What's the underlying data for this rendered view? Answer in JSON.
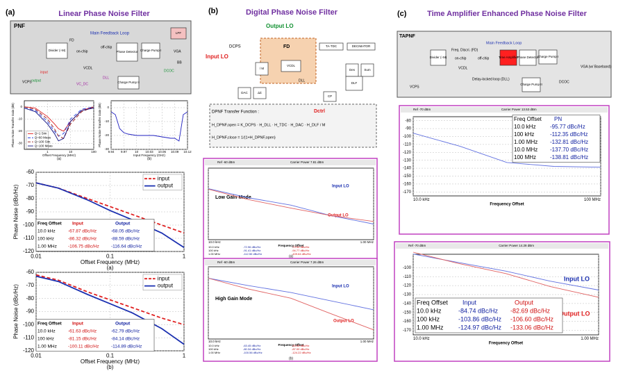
{
  "panels": [
    {
      "label": "(a)",
      "title": "Linear Phase Noise Filter"
    },
    {
      "label": "(b)",
      "title": "Digital Phase Noise Filter"
    },
    {
      "label": "(c)",
      "title": "Time Amplifier Enhanced Phase Noise Filter"
    }
  ],
  "diagrams": [
    {
      "items": [
        "PNF",
        "Main Feedback Loop",
        "VCPS",
        "Divider (÷M)",
        "FD",
        "on-chip",
        "off-chip",
        "VCDL",
        "Phase Detector",
        "Charge Pump I",
        "LPF",
        "VGA",
        "BB",
        "DLL",
        "DCOC",
        "Charge Pump II",
        "VC_DC",
        "input",
        "output"
      ]
    },
    {
      "items": [
        "Output LO",
        "Input LO",
        "DCPS",
        "/ M",
        "FD",
        "VCDL",
        "TA-TDC",
        "DLL",
        "DECIMATOR",
        "Des",
        "Sum",
        "DAC",
        "ΔΣ",
        "CP",
        "DLF",
        "Dctrl",
        "DPNF Transfer Function :",
        "H_DPNF,open = K_DCPS · H_DLL · H_TDC · H_DAC · H_DLF / M",
        "H_DPNF,close = 1/(1+H_DPNF,open)"
      ]
    },
    {
      "items": [
        "TAPNF",
        "Main Feedback Loop",
        "VCPS",
        "Divider (÷M)",
        "Freq. Discri. (FD)",
        "on-chip",
        "off-chip",
        "VCDL",
        "Time Amplifier",
        "Phase Detector",
        "Charge Pump I",
        "VGA (w/ Baseband)",
        "Delay-locked loop (DLL)",
        "DCOC",
        "Charge Pump II"
      ]
    }
  ],
  "chart_data": [
    {
      "type": "line",
      "xlog": true,
      "xlim": [
        0.1,
        100
      ],
      "xticks": [
        1,
        10,
        100
      ],
      "ylim": [
        -35,
        5
      ],
      "yticks": [
        -30,
        -20,
        -10,
        0
      ],
      "grid": true,
      "ylabel": "Phase Noise Transfer Gain (dB)",
      "xlabel": "Offset Frequency (MHz)",
      "caption": "(a)",
      "legend": "lower left",
      "x": [
        0.1,
        0.3,
        1,
        2,
        3,
        5,
        10,
        30,
        100
      ],
      "series": [
        {
          "name": "Q=1 Sim",
          "color": "#e02020",
          "values": [
            0,
            -1,
            -8,
            -14,
            -18,
            -20,
            -12,
            -3,
            0
          ]
        },
        {
          "name": "Q=60 Meas",
          "color": "#2040e0",
          "dash": true,
          "values": [
            -1,
            -3,
            -12,
            -20,
            -24,
            -22,
            -10,
            -2,
            0
          ]
        },
        {
          "name": "Q=100 Sim",
          "color": "#901010",
          "dash": true,
          "values": [
            0,
            -2,
            -10,
            -18,
            -24,
            -26,
            -14,
            -4,
            0
          ]
        },
        {
          "name": "Q=100 Meas",
          "color": "#101080",
          "values": [
            -1,
            -4,
            -14,
            -22,
            -28,
            -26,
            -12,
            -3,
            -1
          ]
        }
      ]
    },
    {
      "type": "line",
      "xlim": [
        9.94,
        10.12
      ],
      "xticks": [
        9.94,
        9.97,
        10,
        10.03,
        10.06,
        10.09,
        10.12
      ],
      "ylim": [
        -30,
        5
      ],
      "yticks": [
        -30,
        -20,
        -10,
        0
      ],
      "grid": true,
      "ylabel": "Phase Noise Transfer Gain (dB)",
      "xlabel": "Input Frequency (GHz)",
      "caption": "(b)",
      "x": [
        9.94,
        9.95,
        9.96,
        9.97,
        9.98,
        10,
        10.02,
        10.04,
        10.06,
        10.08,
        10.09,
        10.1,
        10.11,
        10.12
      ],
      "series": [
        {
          "color": "#2020c0",
          "values": [
            -3,
            -5,
            -15,
            -18,
            -19,
            -20,
            -20,
            -20,
            -21,
            -22,
            -22,
            -24,
            -5,
            -3
          ]
        }
      ]
    },
    {
      "type": "line",
      "xlog": true,
      "xlim": [
        0.01,
        1
      ],
      "xticks": [
        0.01,
        0.1,
        1
      ],
      "ylim": [
        -120,
        -60
      ],
      "yticks": [
        -120,
        -110,
        -100,
        -90,
        -80,
        -70,
        -60
      ],
      "grid": true,
      "ylabel": "Phase Noise (dBc/Hz)",
      "xlabel": "Offset Frequency (MHz)",
      "caption": "(a)",
      "legend": "upper right",
      "x": [
        0.01,
        0.02,
        0.05,
        0.1,
        0.2,
        0.5,
        1
      ],
      "series": [
        {
          "name": "input",
          "color": "#e02020",
          "dash": true,
          "values": [
            -68,
            -72,
            -80,
            -86,
            -92,
            -100,
            -106
          ]
        },
        {
          "name": "output",
          "color": "#1a2fb0",
          "values": [
            -68,
            -72,
            -81,
            -89,
            -96,
            -106,
            -117
          ]
        }
      ],
      "table": {
        "header": [
          "Freq Offset",
          "Input",
          "Output"
        ],
        "colors": [
          "#000000",
          "#d01010",
          "#1020a0"
        ],
        "rows": [
          [
            "10.0 kHz",
            "-67.87 dBc/Hz",
            "-68.05 dBc/Hz"
          ],
          [
            "100 kHz",
            "-86.32 dBc/Hz",
            "-88.59 dBc/Hz"
          ],
          [
            "1.00 MHz",
            "-106.75 dBc/Hz",
            "-116.64 dBc/Hz"
          ]
        ]
      }
    },
    {
      "type": "line",
      "xlog": true,
      "xlim": [
        0.01,
        1
      ],
      "xticks": [
        0.01,
        0.1,
        1
      ],
      "ylim": [
        -120,
        -60
      ],
      "yticks": [
        -120,
        -110,
        -100,
        -90,
        -80,
        -70,
        -60
      ],
      "grid": true,
      "ylabel": "Phase Noise (dBc/Hz)",
      "xlabel": "Offset Frequency (MHz)",
      "caption": "(b)",
      "legend": "upper right",
      "x": [
        0.01,
        0.02,
        0.05,
        0.1,
        0.2,
        0.5,
        1
      ],
      "series": [
        {
          "name": "input",
          "color": "#e02020",
          "dash": true,
          "values": [
            -62,
            -66,
            -75,
            -81,
            -87,
            -95,
            -100
          ]
        },
        {
          "name": "output",
          "color": "#1a2fb0",
          "values": [
            -63,
            -67,
            -77,
            -84,
            -91,
            -103,
            -115
          ]
        }
      ],
      "table": {
        "header": [
          "Freq Offset",
          "Input",
          "Output"
        ],
        "colors": [
          "#000000",
          "#d01010",
          "#1020a0"
        ],
        "rows": [
          [
            "10.0 kHz",
            "-61.63 dBc/Hz",
            "-62.79 dBc/Hz"
          ],
          [
            "100 kHz",
            "-81.15 dBc/Hz",
            "-84.14 dBc/Hz"
          ],
          [
            "1.00 MHz",
            "-100.11 dBc/Hz",
            "-114.89 dBc/Hz"
          ]
        ]
      }
    },
    {
      "type": "line",
      "xlog": true,
      "xlim": [
        0.01,
        1
      ],
      "xticks": [
        {
          "value": 0.01,
          "label": "10.0 kHz"
        },
        {
          "value": 1,
          "label": "1.00 MHz"
        }
      ],
      "ylim": [
        -130,
        -50
      ],
      "grid": true,
      "xlabel": "Frequency Offset",
      "caption": "(a)",
      "header": [
        "Ref -60 dBm",
        "Carrier Power 7.81 dBm"
      ],
      "mode": "Low Gain Mode",
      "annotations": [
        {
          "text": "Input LO",
          "color": "#1a2fb0"
        },
        {
          "text": "Output LO",
          "color": "#e02020"
        }
      ],
      "x": [
        0.01,
        0.03,
        0.1,
        0.3,
        1
      ],
      "series": [
        {
          "color": "#6070e0",
          "values": [
            -72.96,
            -83,
            -91.41,
            -103,
            -112.5
          ]
        },
        {
          "color": "#e06060",
          "values": [
            -73.55,
            -85,
            -94.77,
            -103,
            -109.64
          ]
        }
      ],
      "table": {
        "colors": [
          "#000000",
          "#1020a0",
          "#d01010"
        ],
        "rows": [
          [
            "10.0 kHz",
            "-72.96 dBc/Hz",
            "-73.55 dBc/Hz"
          ],
          [
            "100 kHz",
            "-91.41 dBc/Hz",
            "-94.77 dBc/Hz"
          ],
          [
            "1.00 MHz",
            "-112.50 dBc/Hz",
            "-109.64 dBc/Hz"
          ]
        ]
      }
    },
    {
      "type": "line",
      "xlog": true,
      "xlim": [
        0.01,
        1
      ],
      "xticks": [
        {
          "value": 0.01,
          "label": "10.0 kHz"
        },
        {
          "value": 1,
          "label": "1.00 MHz"
        }
      ],
      "ylim": [
        -135,
        -50
      ],
      "grid": true,
      "xlabel": "Frequency Offset",
      "caption": "(b)",
      "header": [
        "Ref -60 dBm",
        "Carrier Power 7.26 dBm"
      ],
      "mode": "High Gain Mode",
      "annotations": [
        {
          "text": "Input LO",
          "color": "#1a2fb0"
        },
        {
          "text": "Output LO",
          "color": "#e02020"
        }
      ],
      "x": [
        0.01,
        0.03,
        0.1,
        0.3,
        1
      ],
      "series": [
        {
          "color": "#6070e0",
          "values": [
            -63.45,
            -72,
            -80.34,
            -90,
            -100.56
          ]
        },
        {
          "color": "#e06060",
          "values": [
            -63.45,
            -76,
            -87,
            -105,
            -124.22
          ]
        }
      ],
      "table": {
        "colors": [
          "#000000",
          "#1020a0",
          "#d01010"
        ],
        "rows": [
          [
            "10.0 kHz",
            "-63.45 dBc/Hz",
            "-63.45 dBc/Hz"
          ],
          [
            "100 kHz",
            "-80.34 dBc/Hz",
            "-87.00 dBc/Hz"
          ],
          [
            "1.00 MHz",
            "-100.56 dBc/Hz",
            "-124.22 dBc/Hz"
          ]
        ]
      }
    },
    {
      "type": "line",
      "xlog": true,
      "xlim": [
        0.01,
        100
      ],
      "xticks": [
        {
          "value": 0.01,
          "label": "10.0 kHz"
        },
        {
          "value": 100,
          "label": "100 MHz"
        }
      ],
      "ylim": [
        -175,
        -75
      ],
      "yticks": [
        -80,
        -90,
        -100,
        -110,
        -120,
        -130,
        -140,
        -150,
        -160,
        -170
      ],
      "grid": true,
      "xlabel": "Frequency Offset",
      "header": [
        "Ref -70 dBm",
        "Carrier Power 13.53 dBm"
      ],
      "x": [
        0.01,
        0.1,
        1,
        10,
        100
      ],
      "series": [
        {
          "color": "#6070e0",
          "values": [
            -95.77,
            -112.35,
            -132.81,
            -137.7,
            -138.81
          ]
        }
      ],
      "table": {
        "header": [
          "Freq Offset",
          "PN"
        ],
        "colors": [
          "#000000",
          "#1020a0"
        ],
        "rows": [
          [
            "10.0 kHz",
            "-95.77 dBc/Hz"
          ],
          [
            "100 kHz",
            "-112.35 dBc/Hz"
          ],
          [
            "1.00 MHz",
            "-132.81 dBc/Hz"
          ],
          [
            "10.0 MHz",
            "-137.70 dBc/Hz"
          ],
          [
            "100 MHz",
            "-138.81 dBc/Hz"
          ]
        ]
      }
    },
    {
      "type": "line",
      "xlog": true,
      "xlim": [
        0.01,
        1
      ],
      "xticks": [
        {
          "value": 0.01,
          "label": "10.0 kHz"
        },
        {
          "value": 1,
          "label": "1.00 MHz"
        }
      ],
      "ylim": [
        -175,
        -85
      ],
      "yticks": [
        -100,
        -110,
        -120,
        -130,
        -140,
        -150,
        -160,
        -170
      ],
      "grid": true,
      "xlabel": "Frequency Offset",
      "header": [
        "Ref -70 dBm",
        "Carrier Power 14.28 dBm"
      ],
      "annotations": [
        {
          "text": "Input LO",
          "color": "#1a2fb0"
        },
        {
          "text": "Output LO",
          "color": "#e02020"
        }
      ],
      "x": [
        0.01,
        0.03,
        0.1,
        0.3,
        1
      ],
      "series": [
        {
          "color": "#6070e0",
          "values": [
            -84.74,
            -94,
            -103.86,
            -115,
            -124.97
          ]
        },
        {
          "color": "#e06060",
          "values": [
            -82.69,
            -95,
            -106.6,
            -121,
            -133.06
          ]
        }
      ],
      "table": {
        "header": [
          "Freq Offset",
          "Input",
          "Output"
        ],
        "colors": [
          "#000000",
          "#1020a0",
          "#d01010"
        ],
        "rows": [
          [
            "10.0 kHz",
            "-84.74 dBc/Hz",
            "-82.69 dBc/Hz"
          ],
          [
            "100 kHz",
            "-103.86 dBc/Hz",
            "-106.60 dBc/Hz"
          ],
          [
            "1.00 MHz",
            "-124.97 dBc/Hz",
            "-133.06 dBc/Hz"
          ]
        ]
      }
    }
  ]
}
